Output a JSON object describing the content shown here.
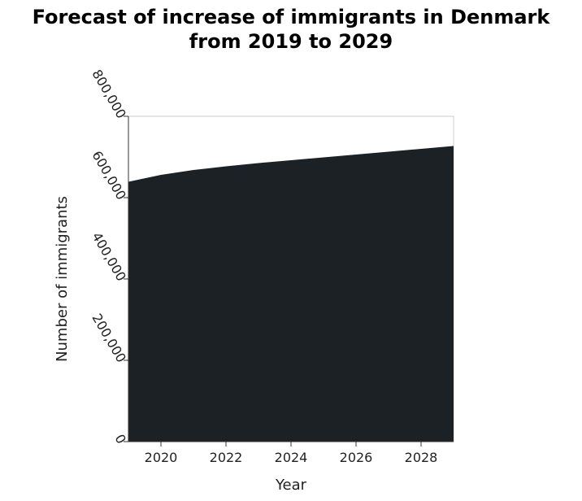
{
  "chart_data": {
    "type": "area",
    "title_lines": [
      "Forecast of increase of immigrants in Denmark",
      "from 2019 to 2029"
    ],
    "xlabel": "Year",
    "ylabel": "Number of immigrants",
    "x": [
      2019,
      2020,
      2021,
      2022,
      2023,
      2024,
      2025,
      2026,
      2027,
      2028,
      2029
    ],
    "values": [
      639000,
      656000,
      668000,
      677000,
      685000,
      692000,
      699000,
      706000,
      713000,
      720000,
      727000
    ],
    "xlim": [
      2019,
      2029
    ],
    "ylim": [
      0,
      800000
    ],
    "x_ticks": [
      "2020",
      "2022",
      "2024",
      "2026",
      "2028"
    ],
    "y_ticks": [
      "0",
      "200,000",
      "400,000",
      "600,000",
      "800,000"
    ],
    "fill_color": "#1c2126",
    "grid": false,
    "legend": "none"
  }
}
